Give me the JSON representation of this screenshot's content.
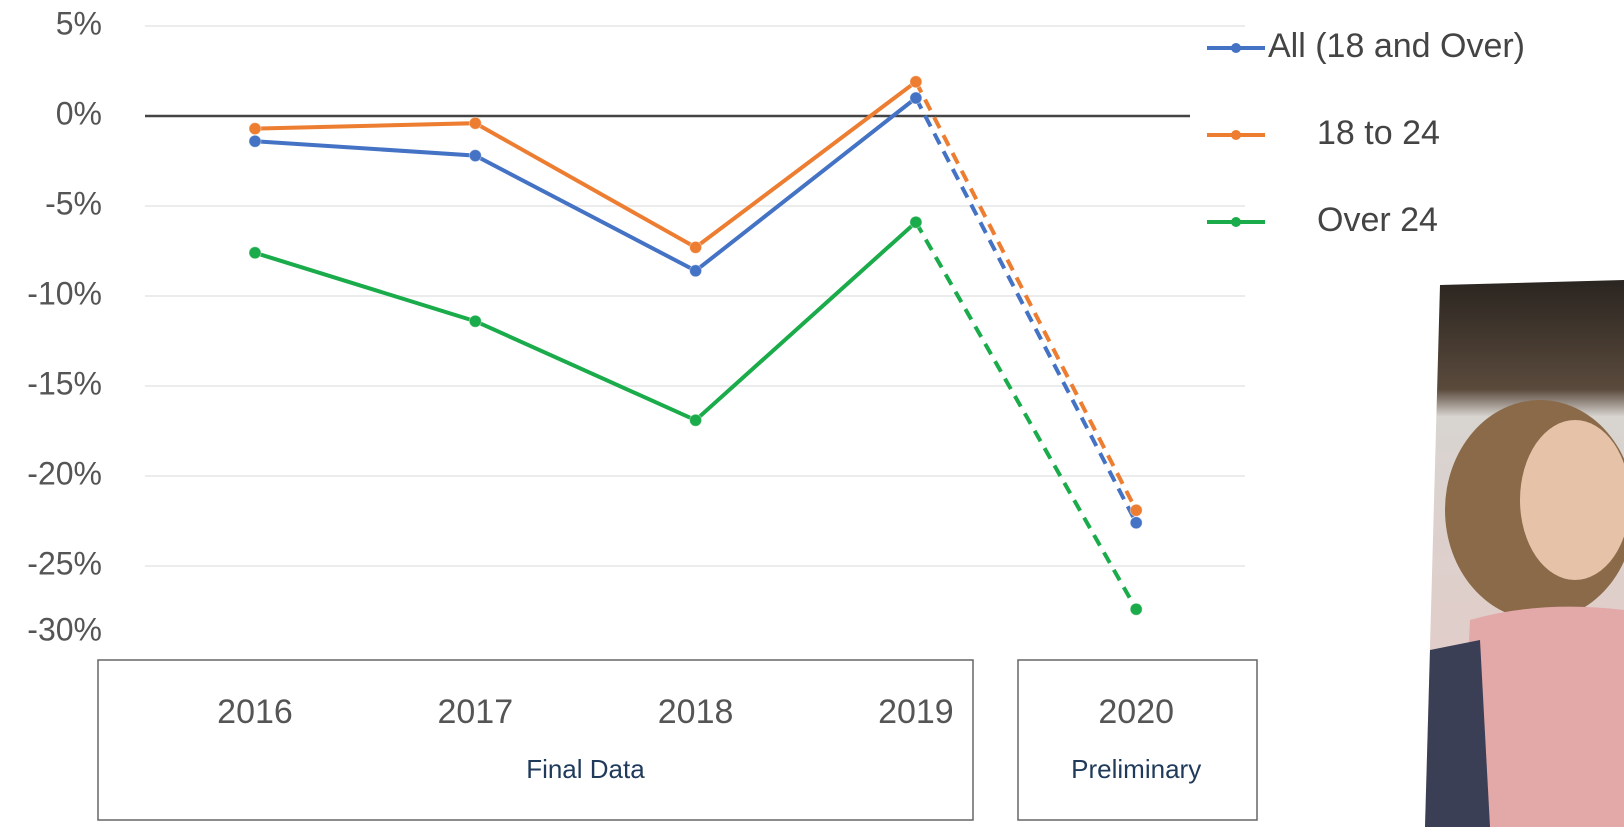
{
  "chart_data": {
    "type": "line",
    "categories": [
      "2016",
      "2017",
      "2018",
      "2019",
      "2020"
    ],
    "groups": [
      {
        "label": "Final Data",
        "span": 4
      },
      {
        "label": "Preliminary",
        "span": 1,
        "dashed": true
      }
    ],
    "series": [
      {
        "name": "All (18 and Over)",
        "color": "#4472c4",
        "values": [
          -1.4,
          -2.2,
          -8.6,
          1.0,
          -22.6
        ]
      },
      {
        "name": "18 to 24",
        "color": "#ed7d31",
        "values": [
          -0.7,
          -0.4,
          -7.3,
          1.9,
          -21.9
        ]
      },
      {
        "name": "Over 24",
        "color": "#1aab4a",
        "values": [
          -7.6,
          -11.4,
          -16.9,
          -5.9,
          -27.4
        ]
      }
    ],
    "ylim": [
      -30,
      5
    ],
    "yticks": [
      {
        "value": 5,
        "label": "5%"
      },
      {
        "value": 0,
        "label": "0%"
      },
      {
        "value": -5,
        "label": "-5%"
      },
      {
        "value": -10,
        "label": "-10%"
      },
      {
        "value": -15,
        "label": "-15%"
      },
      {
        "value": -20,
        "label": "-20%"
      },
      {
        "value": -25,
        "label": "-25%"
      },
      {
        "value": -30,
        "label": "-30%"
      }
    ],
    "grid": true,
    "legend": "top-right"
  }
}
